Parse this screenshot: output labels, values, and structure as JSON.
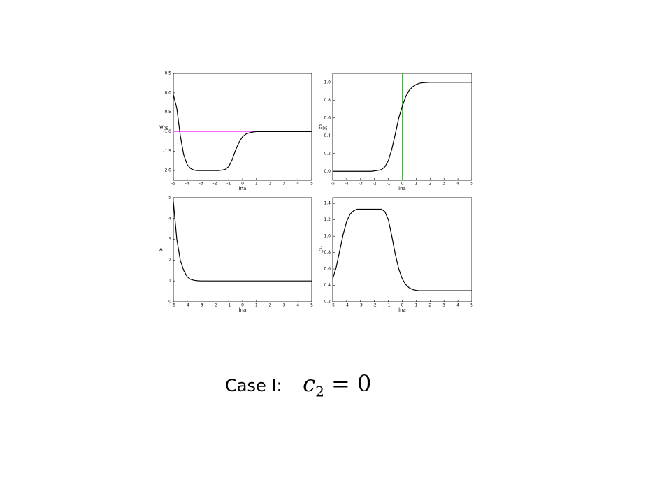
{
  "chart_data": [
    {
      "type": "line",
      "x_label": "lna",
      "y_label": "w",
      "y_label_sub": "DE",
      "x": [
        -5,
        -4.75,
        -4.5,
        -4.25,
        -4,
        -3.75,
        -3.5,
        -3.25,
        -3,
        -2.75,
        -2.5,
        -2.25,
        -2,
        -1.75,
        -1.5,
        -1.25,
        -1,
        -0.75,
        -0.5,
        -0.25,
        0,
        0.25,
        0.5,
        0.75,
        1,
        1.25,
        1.5,
        1.75,
        2,
        2.25,
        2.5,
        2.75,
        3,
        3.25,
        3.5,
        3.75,
        4,
        4.25,
        4.5,
        4.75,
        5
      ],
      "series": [
        {
          "color": "#000000",
          "values": [
            -0.05,
            -0.4,
            -1.1,
            -1.6,
            -1.85,
            -1.95,
            -1.99,
            -2,
            -2,
            -2,
            -2,
            -2,
            -2,
            -2,
            -1.99,
            -1.97,
            -1.9,
            -1.72,
            -1.47,
            -1.27,
            -1.13,
            -1.06,
            -1.03,
            -1.01,
            -1,
            -1,
            -1,
            -1,
            -1,
            -1,
            -1,
            -1,
            -1,
            -1,
            -1,
            -1,
            -1,
            -1,
            -1,
            -1,
            -1
          ]
        }
      ],
      "reference_lines": [
        {
          "axis": "y",
          "value": -1,
          "color": "#ff66ff"
        }
      ],
      "xlim": [
        -5,
        5
      ],
      "xticks": [
        -5,
        -4,
        -3,
        -2,
        -1,
        0,
        1,
        2,
        3,
        4,
        5
      ],
      "ylim": [
        -2.25,
        0.5
      ],
      "yticks": [
        {
          "value": -2,
          "label": "-2.0"
        },
        -1.5,
        {
          "value": -1,
          "label": "-1.0"
        },
        -0.5,
        {
          "value": 0,
          "label": "0.0"
        },
        0.5
      ]
    },
    {
      "type": "line",
      "x_label": "lna",
      "y_label": "Ω",
      "y_label_sub": "DE",
      "x": [
        -5,
        -4.75,
        -4.5,
        -4.25,
        -4,
        -3.75,
        -3.5,
        -3.25,
        -3,
        -2.75,
        -2.5,
        -2.25,
        -2,
        -1.75,
        -1.5,
        -1.25,
        -1,
        -0.75,
        -0.5,
        -0.25,
        0,
        0.25,
        0.5,
        0.75,
        1,
        1.25,
        1.5,
        1.75,
        2,
        2.25,
        2.5,
        2.75,
        3,
        3.25,
        3.5,
        3.75,
        4,
        4.25,
        4.5,
        4.75,
        5
      ],
      "series": [
        {
          "color": "#000000",
          "values": [
            0,
            0,
            0,
            0,
            0,
            0,
            0,
            0,
            0,
            0,
            0,
            0,
            0.005,
            0.01,
            0.02,
            0.05,
            0.12,
            0.25,
            0.42,
            0.6,
            0.73,
            0.84,
            0.91,
            0.95,
            0.975,
            0.99,
            0.995,
            0.998,
            1,
            1,
            1,
            1,
            1,
            1,
            1,
            1,
            1,
            1,
            1,
            1,
            1
          ]
        }
      ],
      "reference_lines": [
        {
          "axis": "x",
          "value": 0,
          "color": "#22cc22"
        }
      ],
      "xlim": [
        -5,
        5
      ],
      "xticks": [
        -5,
        -4,
        -3,
        -2,
        -1,
        0,
        1,
        2,
        3,
        4,
        5
      ],
      "ylim": [
        -0.1,
        1.1
      ],
      "yticks": [
        {
          "value": 0,
          "label": "0.0"
        },
        0.2,
        0.4,
        0.6,
        0.8,
        {
          "value": 1,
          "label": "1.0"
        }
      ]
    },
    {
      "type": "line",
      "x_label": "lna",
      "y_label": "A",
      "x": [
        -5,
        -4.75,
        -4.5,
        -4.25,
        -4,
        -3.75,
        -3.5,
        -3.25,
        -3,
        -2.75,
        -2.5,
        -2.25,
        -2,
        -1.75,
        -1.5,
        -1.25,
        -1,
        -0.75,
        -0.5,
        -0.25,
        0,
        0.25,
        0.5,
        0.75,
        1,
        1.25,
        1.5,
        1.75,
        2,
        2.25,
        2.5,
        2.75,
        3,
        3.25,
        3.5,
        3.75,
        4,
        4.25,
        4.5,
        4.75,
        5
      ],
      "series": [
        {
          "color": "#000000",
          "values": [
            4.8,
            3.0,
            2.0,
            1.5,
            1.2,
            1.08,
            1.03,
            1.01,
            1,
            1,
            1,
            1,
            1,
            1,
            1,
            1,
            1,
            1,
            1,
            1,
            1,
            1,
            1,
            1,
            1,
            1,
            1,
            1,
            1,
            1,
            1,
            1,
            1,
            1,
            1,
            1,
            1,
            1,
            1,
            1,
            1
          ]
        }
      ],
      "xlim": [
        -5,
        5
      ],
      "xticks": [
        -5,
        -4,
        -3,
        -2,
        -1,
        0,
        1,
        2,
        3,
        4,
        5
      ],
      "ylim": [
        0,
        5
      ],
      "yticks": [
        0,
        1,
        2,
        3,
        4,
        5
      ]
    },
    {
      "type": "line",
      "x_label": "lna",
      "y_label": "c",
      "y_label_sub": "s",
      "y_label_sup": "2",
      "x": [
        -5,
        -4.75,
        -4.5,
        -4.25,
        -4,
        -3.75,
        -3.5,
        -3.25,
        -3,
        -2.75,
        -2.5,
        -2.25,
        -2,
        -1.75,
        -1.5,
        -1.25,
        -1,
        -0.75,
        -0.5,
        -0.25,
        0,
        0.25,
        0.5,
        0.75,
        1,
        1.25,
        1.5,
        1.75,
        2,
        2.25,
        2.5,
        2.75,
        3,
        3.25,
        3.5,
        3.75,
        4,
        4.25,
        4.5,
        4.75,
        5
      ],
      "series": [
        {
          "color": "#000000",
          "values": [
            0.48,
            0.62,
            0.82,
            1.02,
            1.18,
            1.27,
            1.31,
            1.33,
            1.33,
            1.33,
            1.33,
            1.33,
            1.33,
            1.33,
            1.33,
            1.3,
            1.2,
            1.0,
            0.78,
            0.6,
            0.48,
            0.41,
            0.37,
            0.35,
            0.34,
            0.335,
            0.335,
            0.335,
            0.335,
            0.335,
            0.335,
            0.335,
            0.335,
            0.335,
            0.335,
            0.335,
            0.335,
            0.335,
            0.335,
            0.335,
            0.335
          ]
        }
      ],
      "xlim": [
        -5,
        5
      ],
      "xticks": [
        -5,
        -4,
        -3,
        -2,
        -1,
        0,
        1,
        2,
        3,
        4,
        5
      ],
      "ylim": [
        0.2,
        1.47
      ],
      "yticks": [
        0.2,
        0.4,
        0.6,
        0.8,
        {
          "value": 1,
          "label": "1.0"
        },
        1.2,
        1.4
      ]
    }
  ],
  "caption": {
    "label": "Case I:",
    "math": "c",
    "sub": "2",
    "rhs": "= 0"
  }
}
